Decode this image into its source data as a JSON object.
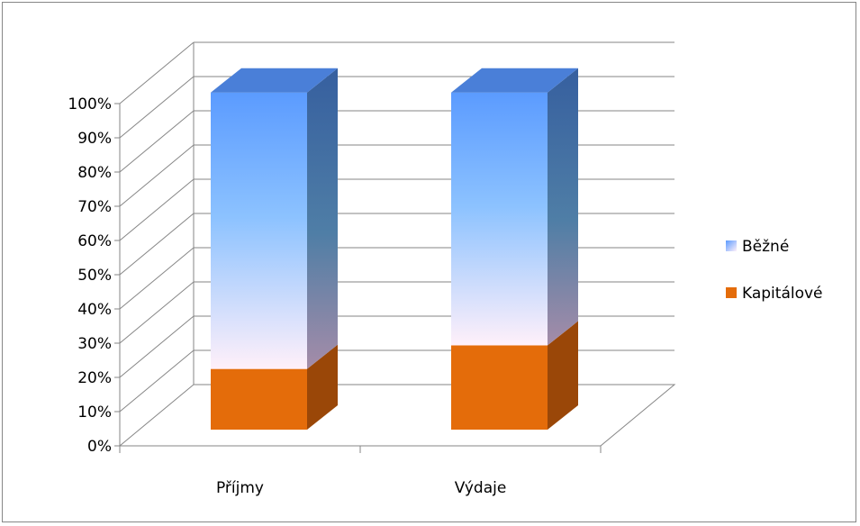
{
  "chart_data": {
    "type": "bar",
    "stacked": "percent",
    "three_d": true,
    "categories": [
      "Příjmy",
      "Výdaje"
    ],
    "series": [
      {
        "name": "Kapitálové",
        "values": [
          18,
          25
        ],
        "color": "#E46C0A"
      },
      {
        "name": "Běžné",
        "values": [
          82,
          75
        ],
        "color": "#6FA8FF"
      }
    ],
    "yticks": [
      "0%",
      "10%",
      "20%",
      "30%",
      "40%",
      "50%",
      "60%",
      "70%",
      "80%",
      "90%",
      "100%"
    ],
    "ylim": [
      0,
      100
    ],
    "grid": true,
    "legend_position": "right",
    "legend": [
      "Běžné",
      "Kapitálové"
    ],
    "colors": {
      "kapitalove_front": "#E46C0A",
      "kapitalove_side": "#9A4708",
      "bezne_top": "#4A7FD8",
      "bezne_front_top": "#5B9BFF",
      "bezne_front_bottom": "#FFF0FA",
      "bezne_side_top": "#365F9F",
      "bezne_side_bottom": "#A58CA8",
      "grid": "#868686"
    }
  }
}
